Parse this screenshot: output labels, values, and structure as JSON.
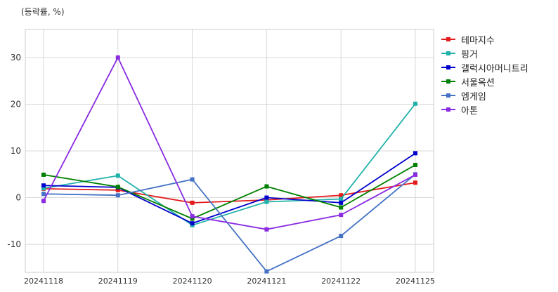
{
  "chart_data": {
    "type": "line",
    "unit_label": "(등락률, %)",
    "categories": [
      "20241118",
      "20241119",
      "20241120",
      "20241121",
      "20241122",
      "20241125"
    ],
    "ylim": [
      -16,
      36
    ],
    "yticks": [
      -10,
      0,
      10,
      20,
      30
    ],
    "grid": true,
    "legend_position": "right",
    "series": [
      {
        "name": "테마지수",
        "color": "#e41a1c",
        "values": [
          1.9,
          1.6,
          -1.1,
          -0.5,
          0.5,
          3.2
        ]
      },
      {
        "name": "핑거",
        "color": "#20b2aa",
        "values": [
          2.0,
          4.7,
          -5.9,
          -0.9,
          -0.3,
          20.1
        ]
      },
      {
        "name": "갤럭시아머니트리",
        "color": "#0000cd",
        "values": [
          2.6,
          2.2,
          -5.5,
          0.0,
          -1.1,
          9.5
        ]
      },
      {
        "name": "서울옥션",
        "color": "#008000",
        "values": [
          4.9,
          2.3,
          -4.5,
          2.4,
          -2.1,
          7.0
        ]
      },
      {
        "name": "엠게임",
        "color": "#4472c4",
        "values": [
          0.8,
          0.5,
          3.9,
          -15.8,
          -8.2,
          5.0
        ]
      },
      {
        "name": "아톤",
        "color": "#8a2be2",
        "values": [
          -0.7,
          30.0,
          -4.0,
          -6.8,
          -3.7,
          4.9
        ]
      }
    ]
  }
}
